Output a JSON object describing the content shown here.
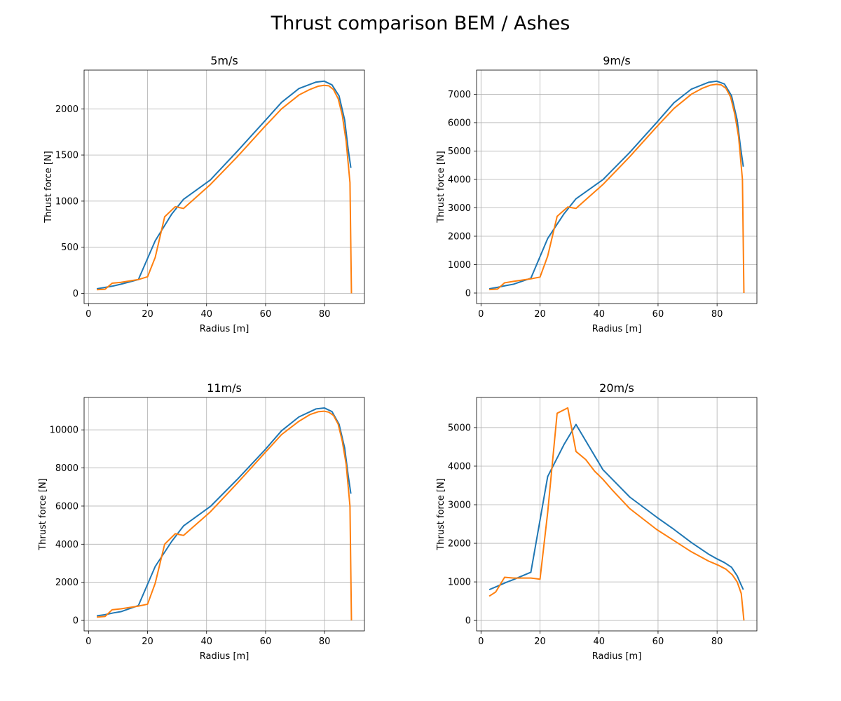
{
  "figure": {
    "title": "Thrust comparison BEM / Ashes"
  },
  "chart_data": [
    {
      "type": "line",
      "title": "5m/s",
      "xlabel": "Radius [m]",
      "ylabel": "Thrust force [N]",
      "xlim": [
        -1.5,
        93.5
      ],
      "ylim": [
        -110,
        2420
      ],
      "xticks": [
        0,
        20,
        40,
        60,
        80
      ],
      "yticks": [
        0,
        500,
        1000,
        1500,
        2000
      ],
      "grid": true,
      "series": [
        {
          "color": "#1f77b4",
          "x": [
            2.8,
            5.6,
            8.3,
            11.0,
            16.9,
            22.6,
            28.2,
            32.2,
            41.3,
            50.4,
            59.5,
            65.4,
            71.3,
            77.1,
            79.9,
            82.5,
            84.9,
            86.8,
            88.0,
            88.9
          ],
          "y": [
            50,
            65,
            80,
            100,
            150,
            570,
            860,
            1020,
            1230,
            1540,
            1860,
            2070,
            2220,
            2290,
            2300,
            2260,
            2140,
            1880,
            1560,
            1360
          ]
        },
        {
          "color": "#ff7f0e",
          "x": [
            2.8,
            5.6,
            8.0,
            11.0,
            16.9,
            20.0,
            22.6,
            25.8,
            29.4,
            32.2,
            41.3,
            50.4,
            59.5,
            65.4,
            71.3,
            75.0,
            77.8,
            79.8,
            81.4,
            83.0,
            84.6,
            86.0,
            87.3,
            88.6,
            89.1
          ],
          "y": [
            40,
            45,
            110,
            120,
            150,
            180,
            390,
            830,
            940,
            920,
            1180,
            1480,
            1800,
            2000,
            2150,
            2210,
            2245,
            2255,
            2250,
            2210,
            2110,
            1930,
            1650,
            1200,
            0
          ]
        }
      ]
    },
    {
      "type": "line",
      "title": "9m/s",
      "xlabel": "Radius [m]",
      "ylabel": "Thrust force [N]",
      "xlim": [
        -1.5,
        93.5
      ],
      "ylim": [
        -370,
        7850
      ],
      "xticks": [
        0,
        20,
        40,
        60,
        80
      ],
      "yticks": [
        0,
        1000,
        2000,
        3000,
        4000,
        5000,
        6000,
        7000
      ],
      "grid": true,
      "series": [
        {
          "color": "#1f77b4",
          "x": [
            2.8,
            5.6,
            8.3,
            11.0,
            16.9,
            22.6,
            28.2,
            32.2,
            41.3,
            50.4,
            59.5,
            65.4,
            71.3,
            77.1,
            79.9,
            82.5,
            84.9,
            86.8,
            88.0,
            88.9
          ],
          "y": [
            150,
            200,
            260,
            310,
            520,
            1920,
            2800,
            3320,
            3990,
            4950,
            6000,
            6700,
            7180,
            7420,
            7460,
            7360,
            6950,
            6100,
            5100,
            4450
          ]
        },
        {
          "color": "#ff7f0e",
          "x": [
            2.8,
            5.6,
            8.0,
            11.0,
            16.9,
            20.0,
            22.6,
            25.8,
            29.4,
            32.2,
            41.3,
            50.4,
            59.5,
            65.4,
            71.3,
            75.0,
            77.8,
            79.8,
            81.4,
            83.0,
            84.6,
            86.0,
            87.3,
            88.6,
            89.1
          ],
          "y": [
            120,
            140,
            360,
            410,
            500,
            560,
            1300,
            2700,
            3030,
            2980,
            3820,
            4800,
            5850,
            6500,
            7000,
            7210,
            7320,
            7350,
            7330,
            7210,
            6900,
            6300,
            5500,
            4000,
            0
          ]
        }
      ]
    },
    {
      "type": "line",
      "title": "11m/s",
      "xlabel": "Radius [m]",
      "ylabel": "Thrust force [N]",
      "xlim": [
        -1.5,
        93.5
      ],
      "ylim": [
        -550,
        11700
      ],
      "xticks": [
        0,
        20,
        40,
        60,
        80
      ],
      "yticks": [
        0,
        2000,
        4000,
        6000,
        8000,
        10000
      ],
      "grid": true,
      "series": [
        {
          "color": "#1f77b4",
          "x": [
            2.8,
            5.6,
            8.3,
            11.0,
            16.9,
            22.6,
            28.2,
            32.2,
            41.3,
            50.4,
            59.5,
            65.4,
            71.3,
            77.1,
            79.9,
            82.5,
            84.9,
            86.8,
            88.0,
            88.9
          ],
          "y": [
            240,
            300,
            390,
            460,
            780,
            2830,
            4150,
            4960,
            5980,
            7400,
            8900,
            9950,
            10680,
            11100,
            11150,
            10960,
            10300,
            9050,
            7600,
            6650
          ]
        },
        {
          "color": "#ff7f0e",
          "x": [
            2.8,
            5.6,
            8.0,
            11.0,
            16.9,
            20.0,
            22.6,
            25.8,
            29.4,
            32.2,
            41.3,
            50.4,
            59.5,
            65.4,
            71.3,
            75.0,
            77.8,
            79.8,
            81.4,
            83.0,
            84.6,
            86.0,
            87.3,
            88.6,
            89.1
          ],
          "y": [
            170,
            210,
            560,
            610,
            750,
            850,
            1950,
            4000,
            4550,
            4460,
            5700,
            7200,
            8750,
            9750,
            10450,
            10800,
            10950,
            10980,
            10930,
            10760,
            10300,
            9400,
            8200,
            6000,
            0
          ]
        }
      ]
    },
    {
      "type": "line",
      "title": "20m/s",
      "xlabel": "Radius [m]",
      "ylabel": "Thrust force [N]",
      "xlim": [
        -1.5,
        93.5
      ],
      "ylim": [
        -270,
        5780
      ],
      "xticks": [
        0,
        20,
        40,
        60,
        80
      ],
      "yticks": [
        0,
        1000,
        2000,
        3000,
        4000,
        5000
      ],
      "grid": true,
      "series": [
        {
          "color": "#1f77b4",
          "x": [
            2.8,
            5.6,
            8.3,
            11.0,
            16.9,
            22.6,
            28.2,
            32.2,
            41.3,
            50.4,
            59.5,
            65.4,
            71.3,
            77.1,
            79.9,
            82.5,
            84.9,
            86.8,
            88.0,
            88.9
          ],
          "y": [
            800,
            890,
            980,
            1060,
            1250,
            3730,
            4570,
            5080,
            3910,
            3200,
            2680,
            2360,
            2020,
            1720,
            1600,
            1500,
            1380,
            1160,
            950,
            800
          ]
        },
        {
          "color": "#ff7f0e",
          "x": [
            2.8,
            5.0,
            8.0,
            11.0,
            16.9,
            20.0,
            22.6,
            25.8,
            29.4,
            32.2,
            35.5,
            38.5,
            41.3,
            44.5,
            50.4,
            59.5,
            65.4,
            71.3,
            77.1,
            80.5,
            83.0,
            85.2,
            86.8,
            88.2,
            89.1
          ],
          "y": [
            630,
            740,
            1120,
            1100,
            1100,
            1070,
            2800,
            5370,
            5510,
            4380,
            4170,
            3870,
            3660,
            3380,
            2900,
            2360,
            2070,
            1780,
            1540,
            1430,
            1330,
            1180,
            1000,
            700,
            0
          ]
        }
      ]
    }
  ]
}
